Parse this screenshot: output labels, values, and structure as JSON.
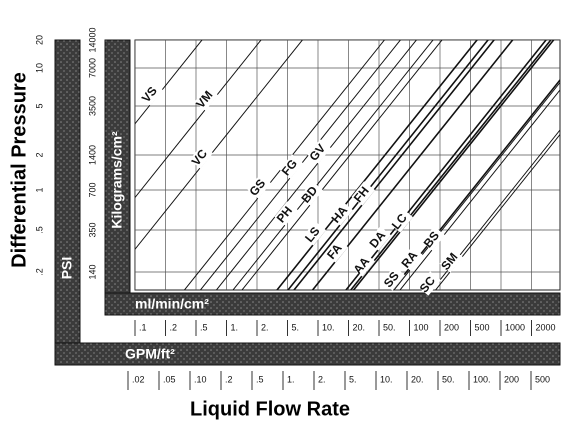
{
  "y_title": "Differential Pressure",
  "x_title": "Liquid Flow Rate",
  "psi_band": "PSI",
  "kg_band": "Kilograms/cm²",
  "ml_band": "ml/min/cm²",
  "gpm_band": "GPM/ft²",
  "psi_ticks": [
    "20",
    "10",
    "5",
    "2",
    "1",
    ".5",
    ".2"
  ],
  "kg_ticks": [
    "14000",
    "7000",
    "3500",
    "1400",
    "700",
    "350",
    "140"
  ],
  "ml_ticks": [
    ".1",
    ".2",
    ".5",
    "1.",
    "2.",
    "5.",
    "10.",
    "20.",
    "50.",
    "100",
    "200",
    "500",
    "1000",
    "2000"
  ],
  "gpm_ticks": [
    ".02",
    ".05",
    ".10",
    ".2",
    ".5",
    "1.",
    "2.",
    "5.",
    "10.",
    "20.",
    "50.",
    "100.",
    "200",
    "500"
  ],
  "lines": [
    "VS",
    "VM",
    "VC",
    "GS",
    "FG",
    "GV",
    "PH",
    "BD",
    "LS",
    "HA",
    "FH",
    "FA",
    "AA",
    "DA",
    "LC",
    "SS",
    "RA",
    "BS",
    "SC",
    "SM"
  ]
}
